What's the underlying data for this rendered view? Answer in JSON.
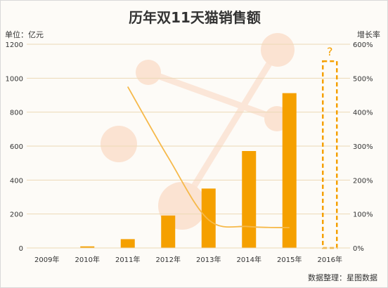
{
  "chart_data": {
    "type": "bar",
    "title": "历年双11天猫销售额",
    "left_axis_label": "单位：亿元",
    "right_axis_label": "增长率",
    "source": "数据整理：星图数据",
    "categories": [
      "2009年",
      "2010年",
      "2011年",
      "2012年",
      "2013年",
      "2014年",
      "2015年",
      "2016年"
    ],
    "series": [
      {
        "type": "bar",
        "values": [
          0.5,
          9.36,
          52,
          191,
          350,
          571,
          912,
          null
        ],
        "color": "#f5a000"
      },
      {
        "type": "line",
        "axis": "right",
        "values": [
          null,
          null,
          475,
          267,
          83,
          63,
          60,
          null
        ],
        "color": "#f6b94a"
      }
    ],
    "forecast_bar": {
      "category": "2016年",
      "value": 1100,
      "label": "?",
      "color": "#f5a000"
    },
    "ylim": [
      0,
      1200
    ],
    "yticks": [
      0,
      200,
      400,
      600,
      800,
      1000,
      1200
    ],
    "y2lim": [
      0,
      600
    ],
    "y2ticks": [
      "0%",
      "100%",
      "200%",
      "300%",
      "400%",
      "500%",
      "600%"
    ],
    "grid": true
  }
}
